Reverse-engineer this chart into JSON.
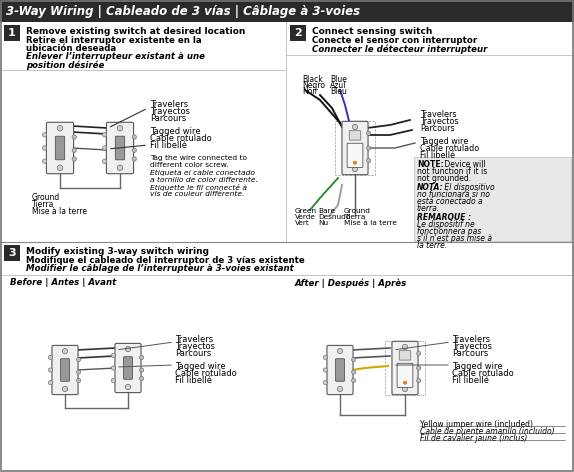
{
  "title": "3-Way Wiring | Cableado de 3 vías | Câblage à 3-voies",
  "title_bg": "#2a2a2a",
  "title_color": "#ffffff",
  "bg_color": "#ffffff",
  "step1_heading_en": "Remove existing switch at desired location",
  "step1_heading_es": "Retire el interruptor existente en la",
  "step1_heading_es2": "ubicación deseada",
  "step1_heading_fr": "Enlever l’interrupteur existant à une",
  "step1_heading_fr2": "position désirée",
  "step2_heading_en": "Connect sensing switch",
  "step2_heading_es": "Conecte el sensor con interruptor",
  "step2_heading_fr": "Connecter le détecteur interrupteur",
  "step3_heading_en": "Modify existing 3-way switch wiring",
  "step3_heading_es": "Modifique el cableado del interruptor de 3 vías existente",
  "step3_heading_fr": "Modifier le câblage de l’interrupteur à 3-voies existant",
  "step3_before": "Before | Antes | Avant",
  "step3_after": "After | Después | Après",
  "step3_yellow": [
    "Yellow jumper wire (included)",
    "Cable de puente amarillo (incluido)",
    "Fil de cavalier jaune (inclus)"
  ],
  "note_bg": "#e8e8e8",
  "sep_color": "#888888",
  "wire_black": "#111111",
  "wire_blue": "#3333bb",
  "wire_green": "#228822",
  "wire_gray": "#999999",
  "wire_yellow": "#ccaa00",
  "switch_fill": "#e8e8e8",
  "switch_edge": "#444444",
  "badge_bg": "#2a2a2a",
  "badge_fg": "#ffffff"
}
